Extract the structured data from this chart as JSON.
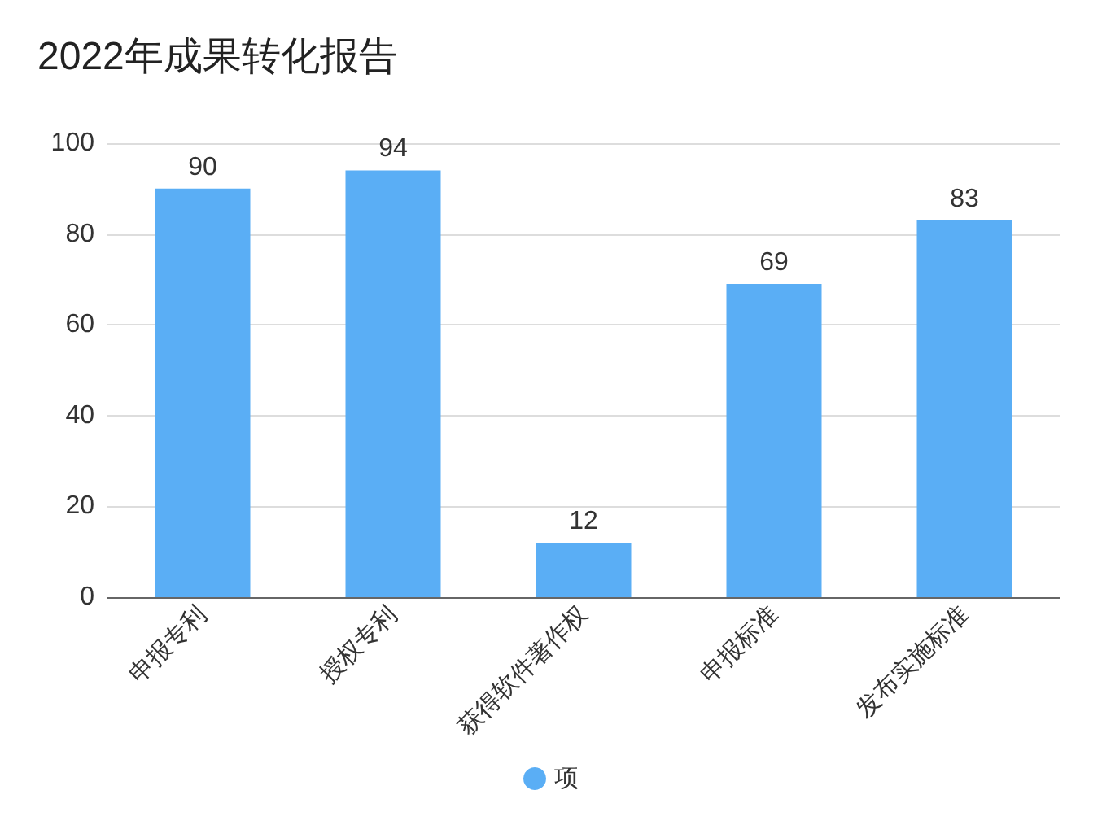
{
  "chart_data": {
    "type": "bar",
    "title": "2022年成果转化报告",
    "categories": [
      "申报专利",
      "授权专利",
      "获得软件著作权",
      "申报标准",
      "发布实施标准"
    ],
    "series": [
      {
        "name": "项",
        "color": "#5aaef5",
        "values": [
          90,
          94,
          12,
          69,
          83
        ]
      }
    ],
    "ylim": [
      0,
      100
    ],
    "yticks": [
      0,
      20,
      40,
      60,
      80,
      100
    ],
    "grid": "y",
    "legend": "bottom",
    "data_labels": true
  }
}
